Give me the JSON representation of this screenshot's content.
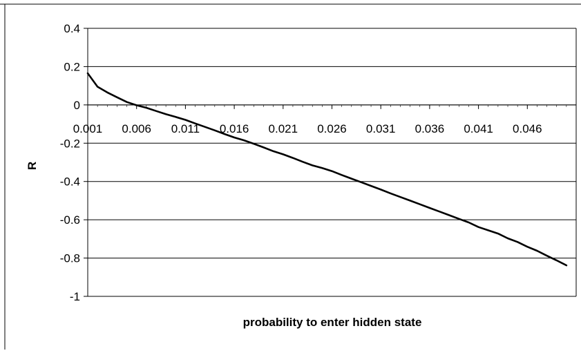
{
  "chart_data": {
    "type": "line",
    "title": "",
    "xlabel": "probability to enter hidden state",
    "ylabel": "R",
    "x_tick_labels": [
      "0.001",
      "0.006",
      "0.011",
      "0.016",
      "0.021",
      "0.026",
      "0.031",
      "0.036",
      "0.041",
      "0.046"
    ],
    "y_tick_labels": [
      "0.4",
      "0.2",
      "0",
      "-0.2",
      "-0.4",
      "-0.6",
      "-0.8",
      "-1"
    ],
    "ylim": [
      -1,
      0.4
    ],
    "xlim": [
      0.001,
      0.051
    ],
    "grid": "horizontal",
    "legend": "none",
    "line_color": "#000000",
    "series": [
      {
        "x": [
          0.001,
          0.002,
          0.003,
          0.004,
          0.005,
          0.006,
          0.007,
          0.008,
          0.009,
          0.01,
          0.011,
          0.012,
          0.013,
          0.014,
          0.015,
          0.016,
          0.017,
          0.018,
          0.019,
          0.02,
          0.021,
          0.022,
          0.023,
          0.024,
          0.025,
          0.026,
          0.027,
          0.028,
          0.029,
          0.03,
          0.031,
          0.032,
          0.033,
          0.034,
          0.035,
          0.036,
          0.037,
          0.038,
          0.039,
          0.04,
          0.041,
          0.042,
          0.043,
          0.044,
          0.045,
          0.046,
          0.047,
          0.048,
          0.049,
          0.05
        ],
        "values": [
          0.165,
          0.095,
          0.065,
          0.04,
          0.015,
          -0.002,
          -0.015,
          -0.032,
          -0.048,
          -0.063,
          -0.078,
          -0.097,
          -0.115,
          -0.133,
          -0.152,
          -0.17,
          -0.185,
          -0.203,
          -0.222,
          -0.242,
          -0.258,
          -0.277,
          -0.297,
          -0.316,
          -0.33,
          -0.346,
          -0.366,
          -0.385,
          -0.404,
          -0.423,
          -0.442,
          -0.462,
          -0.481,
          -0.5,
          -0.519,
          -0.538,
          -0.557,
          -0.576,
          -0.595,
          -0.614,
          -0.638,
          -0.655,
          -0.672,
          -0.697,
          -0.716,
          -0.741,
          -0.762,
          -0.788,
          -0.812,
          -0.838
        ]
      }
    ]
  }
}
